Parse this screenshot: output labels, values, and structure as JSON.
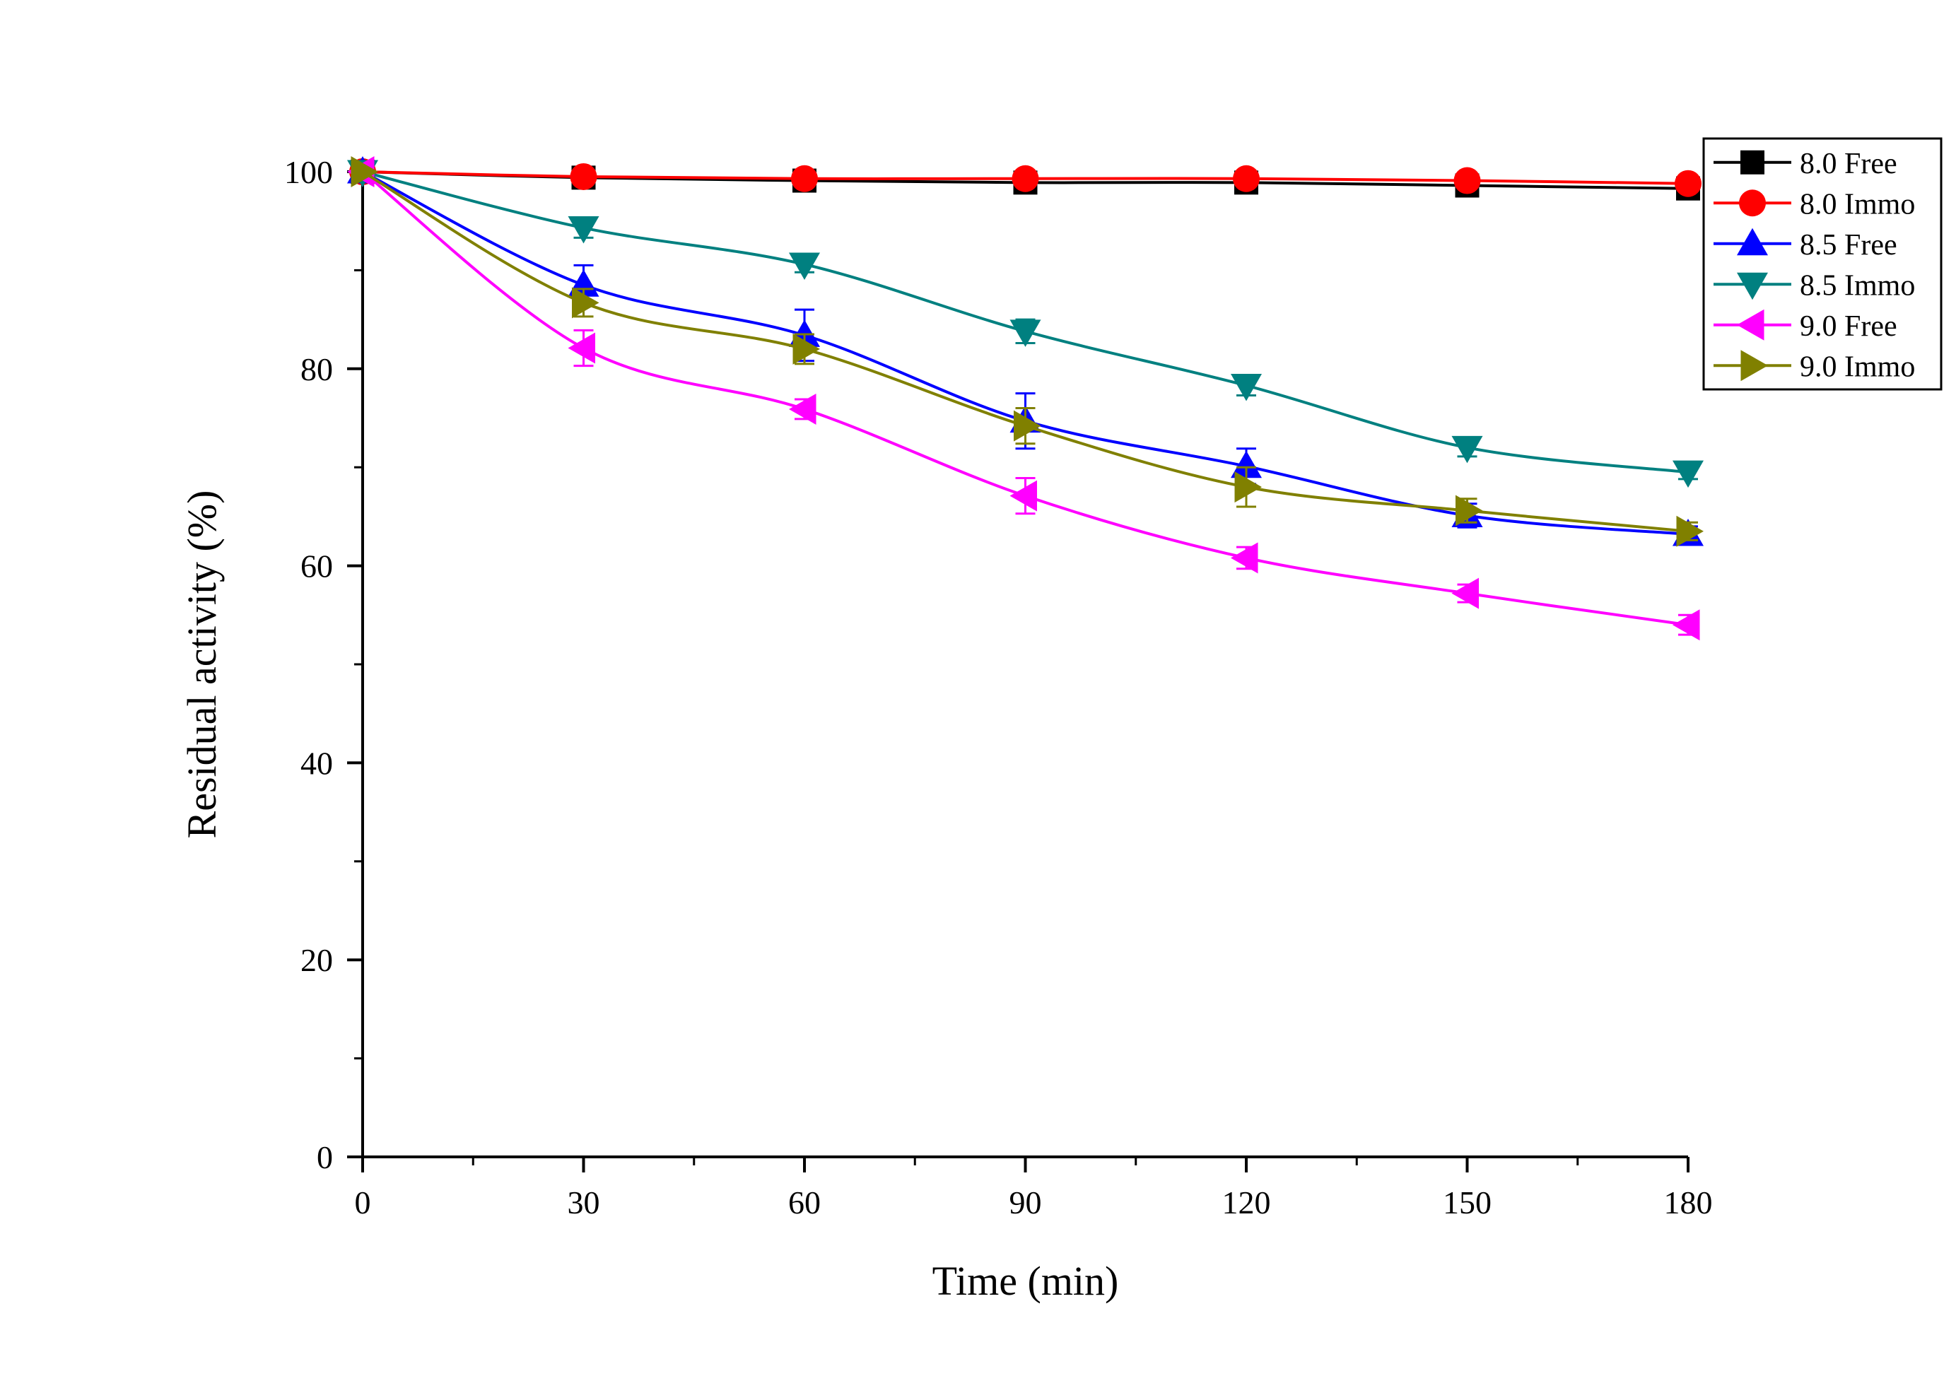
{
  "chart_data": {
    "type": "line",
    "title": "",
    "xlabel": "Time (min)",
    "ylabel": "Residual activity (%)",
    "xlim": [
      0,
      180
    ],
    "ylim": [
      0,
      100
    ],
    "xticks": [
      0,
      30,
      60,
      90,
      120,
      150,
      180
    ],
    "yticks": [
      0,
      20,
      40,
      60,
      80,
      100
    ],
    "grid": false,
    "legend_position": "top-right",
    "x": [
      0,
      30,
      60,
      90,
      120,
      150,
      180
    ],
    "series": [
      {
        "name": "8.0 Free",
        "color": "#000000",
        "marker": "square",
        "values": [
          100,
          99.4,
          99.1,
          98.9,
          98.9,
          98.6,
          98.3
        ],
        "errors": [
          0,
          0.3,
          0.3,
          0.3,
          0.3,
          0.3,
          0.3
        ]
      },
      {
        "name": "8.0 Immo",
        "color": "#ff0000",
        "marker": "circle",
        "values": [
          100,
          99.5,
          99.3,
          99.3,
          99.3,
          99.1,
          98.8
        ],
        "errors": [
          0,
          0.3,
          0.3,
          0.3,
          0.3,
          0.3,
          0.3
        ]
      },
      {
        "name": "8.5 Free",
        "color": "#0000ff",
        "marker": "triangle-up",
        "values": [
          100,
          88.5,
          83.4,
          74.7,
          70.1,
          65.1,
          63.2
        ],
        "errors": [
          0,
          2.0,
          2.6,
          2.8,
          1.8,
          1.2,
          0.8
        ]
      },
      {
        "name": "8.5 Immo",
        "color": "#008080",
        "marker": "triangle-down",
        "values": [
          100,
          94.3,
          90.6,
          83.8,
          78.3,
          72.0,
          69.5
        ],
        "errors": [
          0,
          1.0,
          0.8,
          1.2,
          1.0,
          0.9,
          0.7
        ]
      },
      {
        "name": "9.0 Free",
        "color": "#ff00ff",
        "marker": "triangle-left",
        "values": [
          100,
          82.1,
          75.9,
          67.1,
          60.8,
          57.2,
          54.0
        ],
        "errors": [
          0,
          1.8,
          1.0,
          1.8,
          1.1,
          0.9,
          1.0
        ]
      },
      {
        "name": "9.0 Immo",
        "color": "#808000",
        "marker": "triangle-right",
        "values": [
          100,
          86.7,
          82.0,
          74.2,
          68.0,
          65.6,
          63.5
        ],
        "errors": [
          0,
          1.4,
          1.5,
          1.8,
          2.0,
          1.2,
          0.9
        ]
      }
    ]
  }
}
